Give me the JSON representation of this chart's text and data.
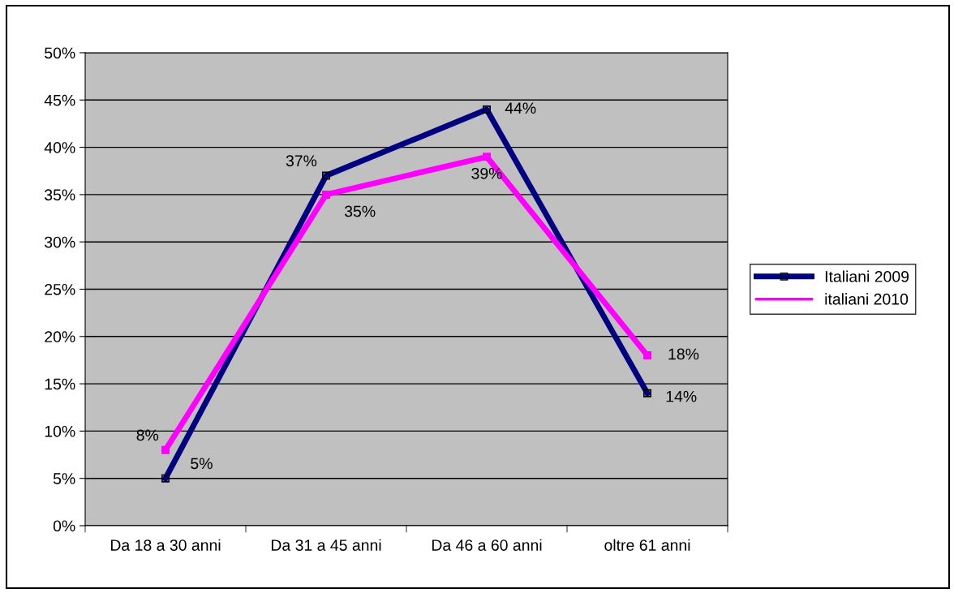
{
  "chart_data": {
    "type": "line",
    "categories": [
      "Da 18 a 30 anni",
      "Da 31 a 45 anni",
      "Da 46 a 60 anni",
      "oltre 61 anni"
    ],
    "series": [
      {
        "name": "Italiani 2009",
        "color": "#000080",
        "values": [
          5,
          37,
          44,
          14
        ],
        "value_labels": [
          "5%",
          "37%",
          "44%",
          "14%"
        ]
      },
      {
        "name": "italiani 2010",
        "color": "#ff00ff",
        "values": [
          8,
          35,
          39,
          18
        ],
        "value_labels": [
          "8%",
          "35%",
          "39%",
          "18%"
        ]
      }
    ],
    "ylim": [
      0,
      50
    ],
    "yticks": [
      {
        "value": 0,
        "label": "0%"
      },
      {
        "value": 5,
        "label": "5%"
      },
      {
        "value": 10,
        "label": "10%"
      },
      {
        "value": 15,
        "label": "15%"
      },
      {
        "value": 20,
        "label": "20%"
      },
      {
        "value": 25,
        "label": "25%"
      },
      {
        "value": 30,
        "label": "30%"
      },
      {
        "value": 35,
        "label": "35%"
      },
      {
        "value": 40,
        "label": "40%"
      },
      {
        "value": 45,
        "label": "45%"
      },
      {
        "value": 50,
        "label": "50%"
      }
    ],
    "grid": "y",
    "legend": "right",
    "marker": "square",
    "line_style": "solid"
  }
}
